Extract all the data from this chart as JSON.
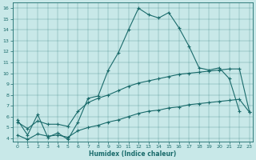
{
  "xlabel": "Humidex (Indice chaleur)",
  "bg_color": "#c8e8e8",
  "line_color": "#1a6b6b",
  "xlim": [
    -0.5,
    23.3
  ],
  "ylim": [
    3.7,
    16.5
  ],
  "xticks": [
    0,
    1,
    2,
    3,
    4,
    5,
    6,
    7,
    8,
    9,
    10,
    11,
    12,
    13,
    14,
    15,
    16,
    17,
    18,
    19,
    20,
    21,
    22,
    23
  ],
  "yticks": [
    4,
    5,
    6,
    7,
    8,
    9,
    10,
    11,
    12,
    13,
    14,
    15,
    16
  ],
  "line1_x": [
    0,
    1,
    2,
    3,
    4,
    5,
    6,
    7,
    8,
    9,
    10,
    11,
    12,
    13,
    14,
    15,
    16,
    17,
    18,
    19,
    20,
    21,
    22
  ],
  "line1_y": [
    5.7,
    4.3,
    6.2,
    4.1,
    4.5,
    3.9,
    5.5,
    7.7,
    7.9,
    10.3,
    11.9,
    14.0,
    16.0,
    15.4,
    15.1,
    15.6,
    14.2,
    12.5,
    10.5,
    10.3,
    10.5,
    9.5,
    6.5
  ],
  "line2_x": [
    0,
    1,
    2,
    3,
    4,
    5,
    6,
    7,
    8,
    9,
    10,
    11,
    12,
    13,
    14,
    15,
    16,
    17,
    18,
    19,
    20,
    21,
    22,
    23
  ],
  "line2_y": [
    5.5,
    4.9,
    5.6,
    5.3,
    5.3,
    5.1,
    6.5,
    7.3,
    7.7,
    8.0,
    8.4,
    8.8,
    9.1,
    9.3,
    9.5,
    9.7,
    9.9,
    10.0,
    10.1,
    10.2,
    10.3,
    10.4,
    10.4,
    6.4
  ],
  "line3_x": [
    0,
    1,
    2,
    3,
    4,
    5,
    6,
    7,
    8,
    9,
    10,
    11,
    12,
    13,
    14,
    15,
    16,
    17,
    18,
    19,
    20,
    21,
    22,
    23
  ],
  "line3_y": [
    4.3,
    3.9,
    4.4,
    4.2,
    4.3,
    4.1,
    4.7,
    5.0,
    5.2,
    5.5,
    5.7,
    6.0,
    6.3,
    6.5,
    6.6,
    6.8,
    6.9,
    7.1,
    7.2,
    7.3,
    7.4,
    7.5,
    7.6,
    6.4
  ]
}
